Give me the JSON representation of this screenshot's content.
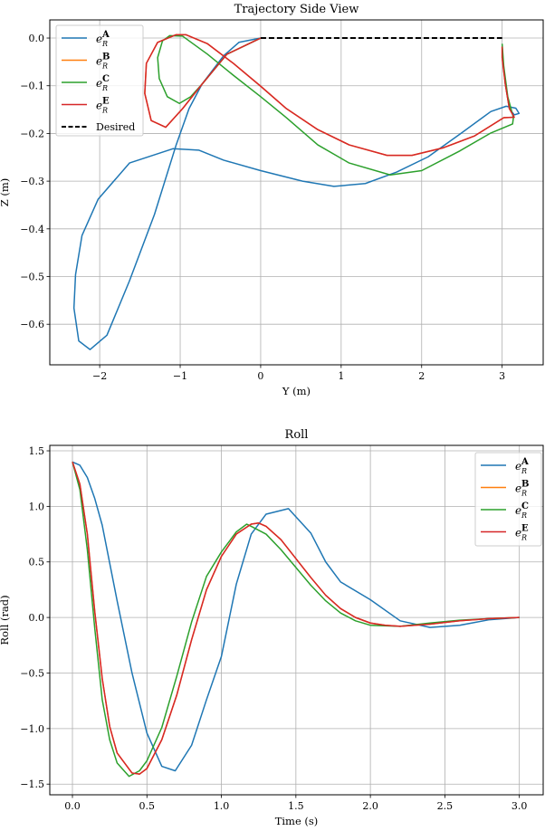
{
  "chart_data": [
    {
      "type": "line",
      "title": "Trajectory Side View",
      "xlabel": "Y (m)",
      "ylabel": "Z (m)",
      "xlim": [
        -2.62,
        3.51
      ],
      "ylim": [
        -0.685,
        0.038
      ],
      "xticks": [
        -2,
        -1,
        0,
        1,
        2,
        3
      ],
      "xtick_labels": [
        "−2",
        "−1",
        "0",
        "1",
        "2",
        "3"
      ],
      "yticks": [
        0.0,
        -0.1,
        -0.2,
        -0.3,
        -0.4,
        -0.5,
        -0.6
      ],
      "ytick_labels": [
        "0.0",
        "−0.1",
        "−0.2",
        "−0.3",
        "−0.4",
        "−0.5",
        "−0.6"
      ],
      "grid": true,
      "legend_position": "top-left",
      "series": [
        {
          "label": {
            "base": "e",
            "sup": "A",
            "sub": "R"
          },
          "color": "#1f77b4",
          "dash": false,
          "points": [
            [
              0,
              0
            ],
            [
              -0.27,
              -0.009
            ],
            [
              -0.46,
              -0.037
            ],
            [
              -0.73,
              -0.097
            ],
            [
              -0.89,
              -0.148
            ],
            [
              -1.05,
              -0.224
            ],
            [
              -1.32,
              -0.37
            ],
            [
              -1.63,
              -0.509
            ],
            [
              -1.91,
              -0.623
            ],
            [
              -2.12,
              -0.653
            ],
            [
              -2.26,
              -0.635
            ],
            [
              -2.32,
              -0.566
            ],
            [
              -2.3,
              -0.496
            ],
            [
              -2.22,
              -0.414
            ],
            [
              -2.02,
              -0.338
            ],
            [
              -1.63,
              -0.262
            ],
            [
              -1.09,
              -0.232
            ],
            [
              -0.77,
              -0.235
            ],
            [
              -0.46,
              -0.256
            ],
            [
              0,
              -0.278
            ],
            [
              0.52,
              -0.3
            ],
            [
              0.91,
              -0.311
            ],
            [
              1.3,
              -0.305
            ],
            [
              1.69,
              -0.281
            ],
            [
              2.08,
              -0.249
            ],
            [
              2.47,
              -0.202
            ],
            [
              2.86,
              -0.154
            ],
            [
              3.05,
              -0.143
            ],
            [
              3.17,
              -0.147
            ],
            [
              3.21,
              -0.158
            ],
            [
              3.15,
              -0.161
            ],
            [
              3.09,
              -0.148
            ],
            [
              3.04,
              -0.097
            ],
            [
              3.01,
              -0.047
            ],
            [
              3.0,
              -0.018
            ]
          ]
        },
        {
          "label": {
            "base": "e",
            "sup": "B",
            "sub": "R"
          },
          "color": "#ff7f0e",
          "dash": false,
          "points": [
            [
              0,
              0
            ],
            [
              -0.42,
              -0.034
            ],
            [
              -0.73,
              -0.097
            ],
            [
              -0.97,
              -0.148
            ],
            [
              -1.18,
              -0.187
            ],
            [
              -1.36,
              -0.173
            ],
            [
              -1.44,
              -0.116
            ],
            [
              -1.42,
              -0.053
            ],
            [
              -1.28,
              -0.009
            ],
            [
              -1.05,
              0.007
            ],
            [
              -0.93,
              0.007
            ],
            [
              -0.66,
              -0.012
            ],
            [
              -0.34,
              -0.053
            ],
            [
              0,
              -0.101
            ],
            [
              0.32,
              -0.148
            ],
            [
              0.71,
              -0.192
            ],
            [
              1.1,
              -0.224
            ],
            [
              1.57,
              -0.246
            ],
            [
              1.88,
              -0.246
            ],
            [
              2.27,
              -0.23
            ],
            [
              2.66,
              -0.205
            ],
            [
              3.02,
              -0.167
            ],
            [
              3.15,
              -0.166
            ],
            [
              3.09,
              -0.148
            ],
            [
              3.04,
              -0.097
            ],
            [
              3.0,
              -0.041
            ],
            [
              3.0,
              -0.018
            ]
          ]
        },
        {
          "label": {
            "base": "e",
            "sup": "C",
            "sub": "R"
          },
          "color": "#2ca02c",
          "dash": false,
          "points": [
            [
              0,
              0
            ],
            [
              -0.42,
              -0.034
            ],
            [
              -0.73,
              -0.097
            ],
            [
              -0.87,
              -0.123
            ],
            [
              -1.01,
              -0.137
            ],
            [
              -1.16,
              -0.123
            ],
            [
              -1.26,
              -0.085
            ],
            [
              -1.28,
              -0.041
            ],
            [
              -1.22,
              -0.006
            ],
            [
              -1.13,
              0.005
            ],
            [
              -0.97,
              0.004
            ],
            [
              -0.66,
              -0.034
            ],
            [
              -0.34,
              -0.078
            ],
            [
              0,
              -0.123
            ],
            [
              0.32,
              -0.167
            ],
            [
              0.71,
              -0.224
            ],
            [
              1.1,
              -0.262
            ],
            [
              1.61,
              -0.287
            ],
            [
              2.0,
              -0.278
            ],
            [
              2.47,
              -0.237
            ],
            [
              2.86,
              -0.199
            ],
            [
              3.13,
              -0.18
            ],
            [
              3.14,
              -0.167
            ],
            [
              3.07,
              -0.123
            ],
            [
              3.02,
              -0.059
            ],
            [
              3.0,
              -0.012
            ]
          ]
        },
        {
          "label": {
            "base": "e",
            "sup": "E",
            "sub": "R"
          },
          "color": "#d62728",
          "dash": false,
          "points": [
            [
              0,
              0
            ],
            [
              -0.42,
              -0.034
            ],
            [
              -0.73,
              -0.097
            ],
            [
              -0.97,
              -0.148
            ],
            [
              -1.18,
              -0.187
            ],
            [
              -1.36,
              -0.173
            ],
            [
              -1.44,
              -0.116
            ],
            [
              -1.42,
              -0.053
            ],
            [
              -1.28,
              -0.009
            ],
            [
              -1.05,
              0.007
            ],
            [
              -0.93,
              0.007
            ],
            [
              -0.66,
              -0.012
            ],
            [
              -0.34,
              -0.053
            ],
            [
              0,
              -0.101
            ],
            [
              0.32,
              -0.148
            ],
            [
              0.71,
              -0.192
            ],
            [
              1.1,
              -0.224
            ],
            [
              1.57,
              -0.246
            ],
            [
              1.88,
              -0.246
            ],
            [
              2.27,
              -0.23
            ],
            [
              2.66,
              -0.205
            ],
            [
              3.02,
              -0.167
            ],
            [
              3.15,
              -0.166
            ],
            [
              3.09,
              -0.148
            ],
            [
              3.04,
              -0.097
            ],
            [
              3.0,
              -0.041
            ],
            [
              3.0,
              -0.018
            ]
          ]
        },
        {
          "label": {
            "base": "Desired"
          },
          "color": "#000000",
          "dash": true,
          "points": [
            [
              0,
              0
            ],
            [
              3,
              0
            ]
          ]
        }
      ]
    },
    {
      "type": "line",
      "title": "Roll",
      "xlabel": "Time (s)",
      "ylabel": "Roll (rad)",
      "xlim": [
        -0.152,
        3.16
      ],
      "ylim": [
        -1.596,
        1.549
      ],
      "xticks": [
        0,
        0.5,
        1.0,
        1.5,
        2.0,
        2.5,
        3.0
      ],
      "xtick_labels": [
        "0.0",
        "0.5",
        "1.0",
        "1.5",
        "2.0",
        "2.5",
        "3.0"
      ],
      "yticks": [
        1.5,
        1.0,
        0.5,
        0.0,
        -0.5,
        -1.0,
        -1.5
      ],
      "ytick_labels": [
        "1.5",
        "1.0",
        "0.5",
        "0.0",
        "−0.5",
        "−1.0",
        "−1.5"
      ],
      "grid": true,
      "legend_position": "top-right",
      "series": [
        {
          "label": {
            "base": "e",
            "sup": "A",
            "sub": "R"
          },
          "color": "#1f77b4",
          "points": [
            [
              0,
              1.4
            ],
            [
              0.05,
              1.37
            ],
            [
              0.1,
              1.26
            ],
            [
              0.15,
              1.07
            ],
            [
              0.2,
              0.83
            ],
            [
              0.3,
              0.15
            ],
            [
              0.4,
              -0.5
            ],
            [
              0.5,
              -1.04
            ],
            [
              0.6,
              -1.34
            ],
            [
              0.69,
              -1.38
            ],
            [
              0.8,
              -1.15
            ],
            [
              0.9,
              -0.74
            ],
            [
              1.0,
              -0.35
            ],
            [
              1.1,
              0.3
            ],
            [
              1.2,
              0.75
            ],
            [
              1.3,
              0.93
            ],
            [
              1.45,
              0.98
            ],
            [
              1.6,
              0.76
            ],
            [
              1.7,
              0.5
            ],
            [
              1.8,
              0.32
            ],
            [
              2.0,
              0.16
            ],
            [
              2.2,
              -0.03
            ],
            [
              2.4,
              -0.09
            ],
            [
              2.6,
              -0.07
            ],
            [
              2.8,
              -0.02
            ],
            [
              3.0,
              0
            ]
          ]
        },
        {
          "label": {
            "base": "e",
            "sup": "B",
            "sub": "R"
          },
          "color": "#ff7f0e",
          "points": [
            [
              0,
              1.4
            ],
            [
              0.05,
              1.2
            ],
            [
              0.1,
              0.75
            ],
            [
              0.15,
              0.05
            ],
            [
              0.2,
              -0.55
            ],
            [
              0.25,
              -0.98
            ],
            [
              0.3,
              -1.22
            ],
            [
              0.4,
              -1.4
            ],
            [
              0.45,
              -1.41
            ],
            [
              0.5,
              -1.36
            ],
            [
              0.6,
              -1.1
            ],
            [
              0.7,
              -0.7
            ],
            [
              0.8,
              -0.2
            ],
            [
              0.9,
              0.25
            ],
            [
              1.0,
              0.55
            ],
            [
              1.1,
              0.75
            ],
            [
              1.2,
              0.84
            ],
            [
              1.25,
              0.85
            ],
            [
              1.3,
              0.82
            ],
            [
              1.4,
              0.7
            ],
            [
              1.5,
              0.53
            ],
            [
              1.6,
              0.36
            ],
            [
              1.7,
              0.2
            ],
            [
              1.8,
              0.08
            ],
            [
              1.9,
              0.0
            ],
            [
              2.0,
              -0.05
            ],
            [
              2.1,
              -0.07
            ],
            [
              2.2,
              -0.08
            ],
            [
              2.4,
              -0.06
            ],
            [
              2.6,
              -0.03
            ],
            [
              2.8,
              -0.01
            ],
            [
              3.0,
              0
            ]
          ]
        },
        {
          "label": {
            "base": "e",
            "sup": "C",
            "sub": "R"
          },
          "color": "#2ca02c",
          "points": [
            [
              0,
              1.4
            ],
            [
              0.05,
              1.15
            ],
            [
              0.1,
              0.61
            ],
            [
              0.15,
              -0.1
            ],
            [
              0.2,
              -0.74
            ],
            [
              0.25,
              -1.1
            ],
            [
              0.3,
              -1.31
            ],
            [
              0.38,
              -1.43
            ],
            [
              0.45,
              -1.38
            ],
            [
              0.5,
              -1.29
            ],
            [
              0.6,
              -0.99
            ],
            [
              0.7,
              -0.53
            ],
            [
              0.8,
              -0.04
            ],
            [
              0.9,
              0.37
            ],
            [
              1.0,
              0.59
            ],
            [
              1.1,
              0.77
            ],
            [
              1.17,
              0.84
            ],
            [
              1.2,
              0.82
            ],
            [
              1.3,
              0.75
            ],
            [
              1.4,
              0.61
            ],
            [
              1.5,
              0.45
            ],
            [
              1.6,
              0.29
            ],
            [
              1.7,
              0.15
            ],
            [
              1.8,
              0.04
            ],
            [
              1.9,
              -0.03
            ],
            [
              2.0,
              -0.07
            ],
            [
              2.2,
              -0.08
            ],
            [
              2.4,
              -0.05
            ],
            [
              2.6,
              -0.025
            ],
            [
              2.8,
              -0.01
            ],
            [
              3.0,
              0
            ]
          ]
        },
        {
          "label": {
            "base": "e",
            "sup": "E",
            "sub": "R"
          },
          "color": "#d62728",
          "points": [
            [
              0,
              1.4
            ],
            [
              0.05,
              1.2
            ],
            [
              0.1,
              0.75
            ],
            [
              0.15,
              0.05
            ],
            [
              0.2,
              -0.55
            ],
            [
              0.25,
              -0.98
            ],
            [
              0.3,
              -1.22
            ],
            [
              0.4,
              -1.4
            ],
            [
              0.45,
              -1.41
            ],
            [
              0.5,
              -1.36
            ],
            [
              0.6,
              -1.1
            ],
            [
              0.7,
              -0.7
            ],
            [
              0.8,
              -0.2
            ],
            [
              0.9,
              0.25
            ],
            [
              1.0,
              0.55
            ],
            [
              1.1,
              0.75
            ],
            [
              1.2,
              0.84
            ],
            [
              1.25,
              0.85
            ],
            [
              1.3,
              0.82
            ],
            [
              1.4,
              0.7
            ],
            [
              1.5,
              0.53
            ],
            [
              1.6,
              0.36
            ],
            [
              1.7,
              0.2
            ],
            [
              1.8,
              0.08
            ],
            [
              1.9,
              0.0
            ],
            [
              2.0,
              -0.05
            ],
            [
              2.1,
              -0.07
            ],
            [
              2.2,
              -0.08
            ],
            [
              2.4,
              -0.06
            ],
            [
              2.6,
              -0.03
            ],
            [
              2.8,
              -0.01
            ],
            [
              3.0,
              0
            ]
          ]
        }
      ]
    }
  ]
}
